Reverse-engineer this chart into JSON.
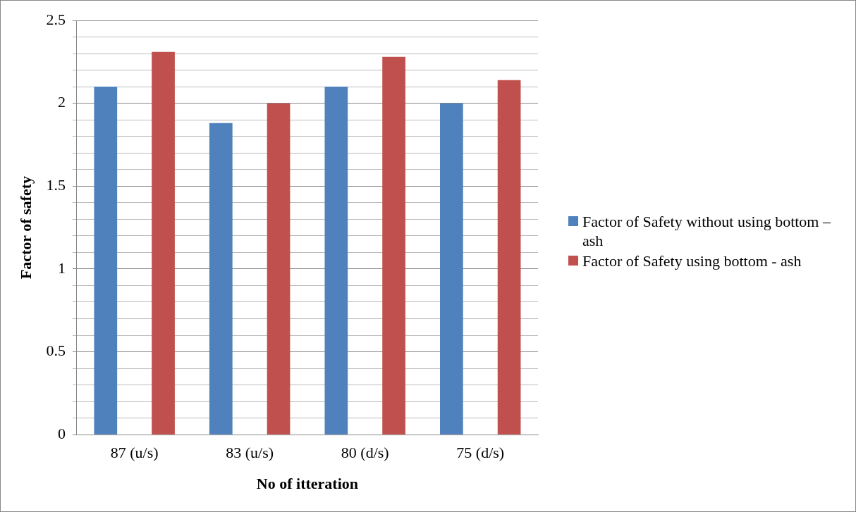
{
  "chart_data": {
    "type": "bar",
    "xlabel": "No of itteration",
    "ylabel": "Factor of safety",
    "categories": [
      "87 (u/s)",
      "83 (u/s)",
      "80 (d/s)",
      "75 (d/s)"
    ],
    "series": [
      {
        "name": "Factor of Safety without using bottom – ash",
        "color": "#4f81bd",
        "values": [
          2.1,
          1.88,
          2.1,
          2.0
        ]
      },
      {
        "name": "Factor of Safety using bottom - ash",
        "color": "#c0504d",
        "values": [
          2.31,
          2.0,
          2.28,
          2.14
        ]
      }
    ],
    "ylim": [
      0,
      2.5
    ],
    "yticks": [
      0,
      {
        "value": 0.1,
        "label": null
      },
      {
        "value": 0.2,
        "label": null
      },
      {
        "value": 0.3,
        "label": null
      },
      {
        "value": 0.4,
        "label": null
      },
      0.5,
      {
        "value": 0.6,
        "label": null
      },
      {
        "value": 0.7,
        "label": null
      },
      {
        "value": 0.8,
        "label": null
      },
      {
        "value": 0.9,
        "label": null
      },
      1,
      {
        "value": 1.1,
        "label": null
      },
      {
        "value": 1.2,
        "label": null
      },
      {
        "value": 1.3,
        "label": null
      },
      {
        "value": 1.4,
        "label": null
      },
      1.5,
      {
        "value": 1.6,
        "label": null
      },
      {
        "value": 1.7,
        "label": null
      },
      {
        "value": 1.8,
        "label": null
      },
      {
        "value": 1.9,
        "label": null
      },
      2,
      {
        "value": 2.1,
        "label": null
      },
      {
        "value": 2.2,
        "label": null
      },
      {
        "value": 2.3,
        "label": null
      },
      {
        "value": 2.4,
        "label": null
      },
      2.5
    ],
    "grid": "y",
    "legend": "right"
  }
}
